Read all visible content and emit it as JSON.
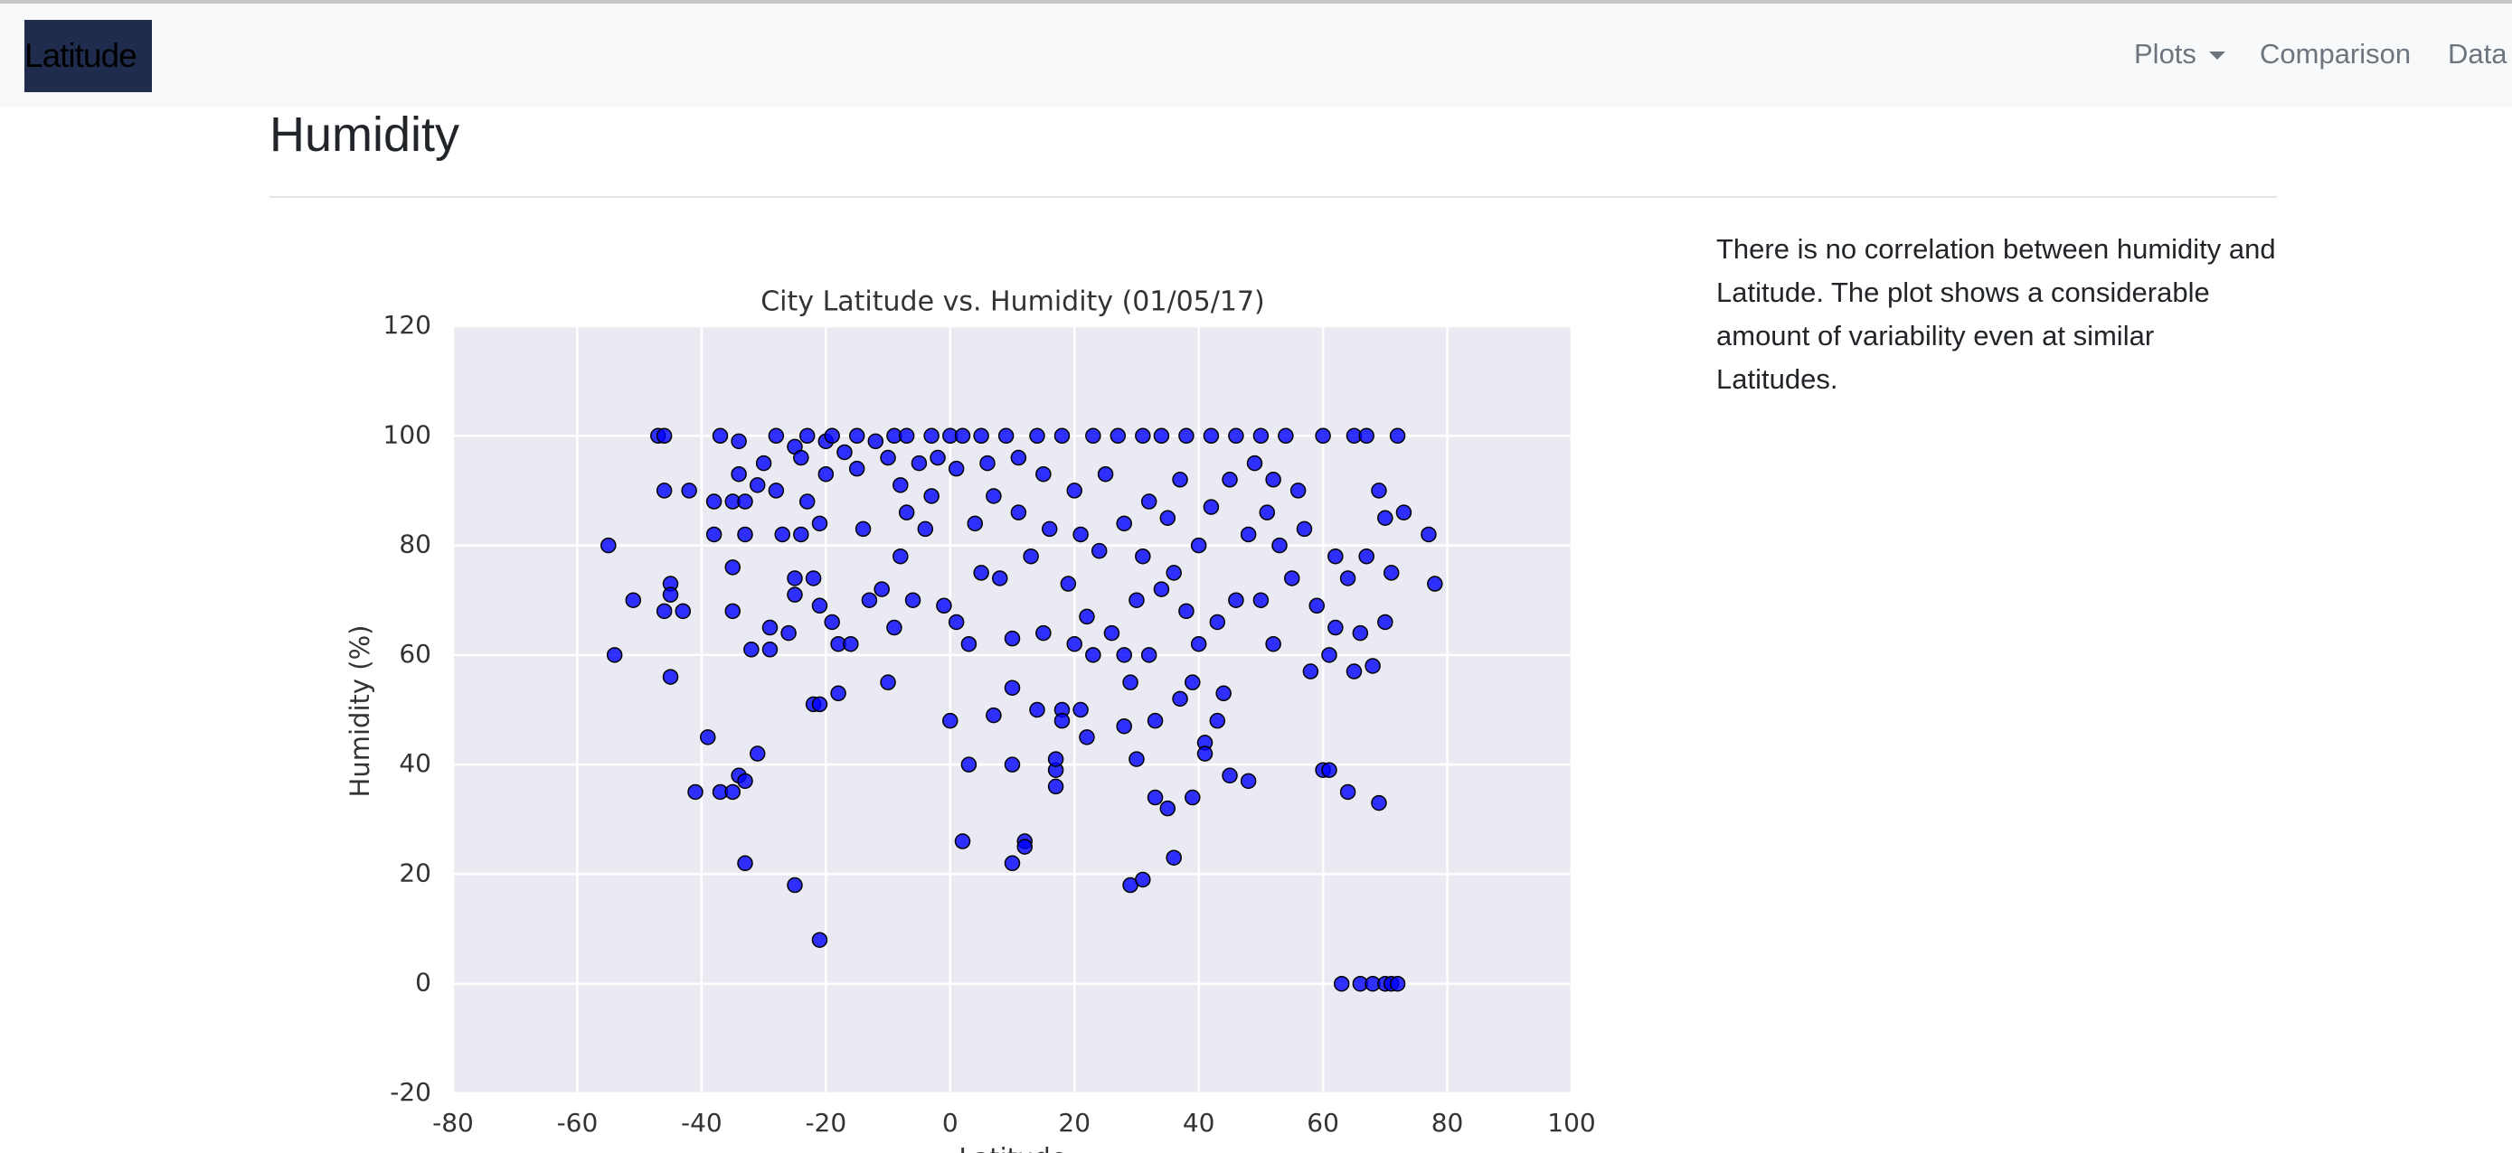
{
  "navbar": {
    "brand": "Latitude",
    "links": [
      "Plots",
      "Comparison",
      "Data"
    ]
  },
  "section": {
    "heading": "Humidity",
    "text": "There is no correlation between humidity and Latitude. The plot shows a considerable amount of variability even at similar Latitudes."
  },
  "chart_data": {
    "type": "scatter",
    "title": "City Latitude vs. Humidity (01/05/17)",
    "xlabel": "Latitude",
    "ylabel": "Humidity (%)",
    "color": "#0000ff",
    "grid": true,
    "xlim": [
      -80,
      100
    ],
    "ylim": [
      -20,
      120
    ],
    "xticks": [
      -80,
      -60,
      -40,
      -20,
      0,
      20,
      40,
      60,
      80,
      100
    ],
    "yticks": [
      -20,
      0,
      20,
      40,
      60,
      80,
      100,
      120
    ],
    "x": [
      -55,
      -54,
      -51,
      -47,
      -46,
      -46,
      -46,
      -45,
      -45,
      -45,
      -43,
      -42,
      -41,
      -39,
      -38,
      -38,
      -37,
      -37,
      -35,
      -35,
      -35,
      -35,
      -34,
      -34,
      -34,
      -33,
      -33,
      -33,
      -33,
      -32,
      -31,
      -31,
      -30,
      -29,
      -29,
      -28,
      -28,
      -27,
      -26,
      -25,
      -25,
      -25,
      -25,
      -24,
      -24,
      -23,
      -23,
      -22,
      -22,
      -21,
      -21,
      -21,
      -21,
      -20,
      -20,
      -19,
      -19,
      -18,
      -18,
      -17,
      -16,
      -15,
      -15,
      -14,
      -13,
      -12,
      -11,
      -10,
      -10,
      -9,
      -9,
      -8,
      -8,
      -7,
      -7,
      -6,
      -5,
      -4,
      -3,
      -3,
      -2,
      -1,
      0,
      0,
      1,
      1,
      2,
      2,
      3,
      3,
      4,
      5,
      5,
      6,
      7,
      7,
      8,
      9,
      10,
      10,
      10,
      10,
      11,
      11,
      12,
      12,
      13,
      14,
      14,
      15,
      15,
      16,
      17,
      17,
      17,
      18,
      18,
      18,
      19,
      20,
      20,
      21,
      21,
      22,
      22,
      23,
      23,
      24,
      25,
      26,
      27,
      28,
      28,
      28,
      29,
      29,
      30,
      30,
      31,
      31,
      31,
      32,
      32,
      33,
      33,
      34,
      34,
      35,
      35,
      36,
      36,
      37,
      37,
      38,
      38,
      39,
      39,
      40,
      40,
      41,
      41,
      42,
      42,
      43,
      43,
      44,
      45,
      45,
      46,
      46,
      48,
      48,
      49,
      50,
      50,
      51,
      52,
      52,
      53,
      54,
      55,
      56,
      57,
      58,
      59,
      60,
      60,
      61,
      61,
      62,
      62,
      63,
      64,
      64,
      65,
      65,
      66,
      67,
      67,
      68,
      69,
      69,
      70,
      70,
      71,
      71,
      72,
      72,
      73,
      77,
      78,
      68,
      70,
      66
    ],
    "values": [
      80,
      60,
      70,
      100,
      100,
      90,
      68,
      73,
      71,
      56,
      68,
      90,
      35,
      45,
      88,
      82,
      100,
      35,
      88,
      76,
      68,
      35,
      99,
      93,
      38,
      22,
      37,
      88,
      82,
      61,
      42,
      91,
      95,
      61,
      65,
      100,
      90,
      82,
      64,
      18,
      98,
      74,
      71,
      96,
      82,
      100,
      88,
      74,
      51,
      8,
      51,
      69,
      84,
      99,
      93,
      100,
      66,
      62,
      53,
      97,
      62,
      100,
      94,
      83,
      70,
      99,
      72,
      55,
      96,
      100,
      65,
      78,
      91,
      100,
      86,
      70,
      95,
      83,
      100,
      89,
      96,
      69,
      48,
      100,
      66,
      94,
      100,
      26,
      40,
      62,
      84,
      100,
      75,
      95,
      49,
      89,
      74,
      100,
      22,
      40,
      54,
      63,
      86,
      96,
      26,
      25,
      78,
      100,
      50,
      64,
      93,
      83,
      36,
      39,
      41,
      100,
      50,
      48,
      73,
      90,
      62,
      50,
      82,
      45,
      67,
      100,
      60,
      79,
      93,
      64,
      100,
      60,
      47,
      84,
      18,
      55,
      41,
      70,
      19,
      100,
      78,
      60,
      88,
      48,
      34,
      100,
      72,
      32,
      85,
      23,
      75,
      92,
      52,
      100,
      68,
      34,
      55,
      62,
      80,
      44,
      42,
      100,
      87,
      48,
      66,
      53,
      38,
      92,
      100,
      70,
      37,
      82,
      95,
      100,
      70,
      86,
      92,
      62,
      80,
      100,
      74,
      90,
      83,
      57,
      69,
      100,
      39,
      39,
      60,
      78,
      65,
      0,
      74,
      35,
      100,
      57,
      0,
      100,
      78,
      0,
      33,
      90,
      0,
      85,
      0,
      75,
      0,
      100,
      86,
      82,
      73,
      58,
      66,
      64
    ]
  }
}
